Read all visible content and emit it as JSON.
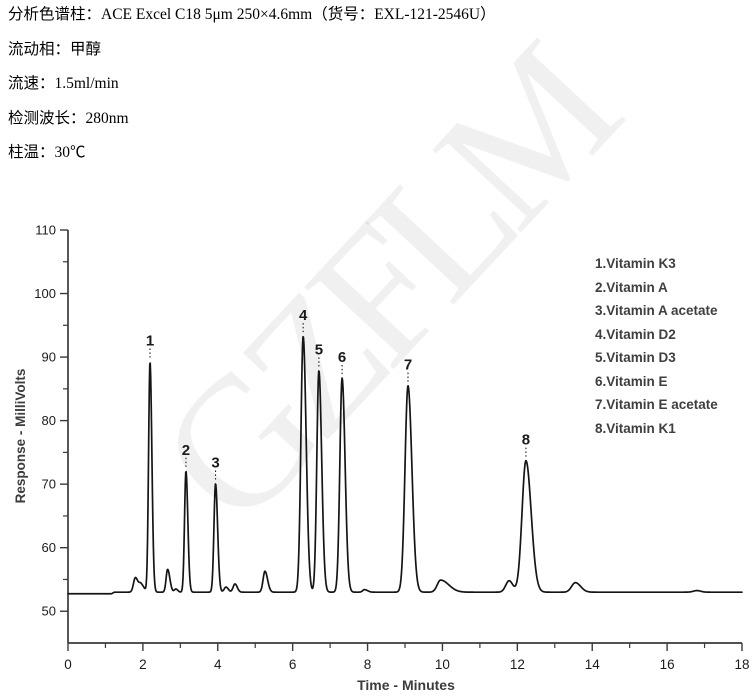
{
  "document": {
    "watermark": "GZFLM",
    "conditions": [
      "分析色谱柱：ACE Excel C18 5μm 250×4.6mm（货号：EXL-121-2546U）",
      "流动相：甲醇",
      "流速：1.5ml/min",
      "检测波长：280nm",
      "柱温：30℃"
    ]
  },
  "chart_data": {
    "type": "line",
    "title": "",
    "xlabel": "Time - Minutes",
    "ylabel": "Response - MilliVolts",
    "xlim": [
      0,
      18
    ],
    "ylim": [
      45,
      110
    ],
    "x_ticks": [
      0,
      2,
      4,
      6,
      8,
      10,
      12,
      14,
      16,
      18
    ],
    "x_minor_step": 1,
    "y_ticks": [
      50,
      60,
      70,
      80,
      90,
      100,
      110
    ],
    "y_minor_step": 5,
    "grid": false,
    "legend_position": "upper right",
    "baseline": {
      "start_mv": 52.75,
      "end_mv": 53.0,
      "step_time_min": 1.15
    },
    "peaks": [
      {
        "label": "1",
        "name": "Vitamin K3",
        "time_min": 2.19,
        "apex_mv": 89.3,
        "sigma_left_min": 0.038,
        "sigma_right_min": 0.05
      },
      {
        "label": "2",
        "name": "Vitamin A",
        "time_min": 3.15,
        "apex_mv": 72.1,
        "sigma_left_min": 0.038,
        "sigma_right_min": 0.05
      },
      {
        "label": "3",
        "name": "Vitamin A acetate",
        "time_min": 3.94,
        "apex_mv": 70.1,
        "sigma_left_min": 0.042,
        "sigma_right_min": 0.055
      },
      {
        "label": "4",
        "name": "Vitamin D2",
        "time_min": 6.28,
        "apex_mv": 93.3,
        "sigma_left_min": 0.06,
        "sigma_right_min": 0.08
      },
      {
        "label": "5",
        "name": "Vitamin D3",
        "time_min": 6.7,
        "apex_mv": 87.9,
        "sigma_left_min": 0.055,
        "sigma_right_min": 0.075
      },
      {
        "label": "6",
        "name": "Vitamin E",
        "time_min": 7.32,
        "apex_mv": 86.7,
        "sigma_left_min": 0.06,
        "sigma_right_min": 0.08
      },
      {
        "label": "7",
        "name": "Vitamin E acetate",
        "time_min": 9.08,
        "apex_mv": 85.5,
        "sigma_left_min": 0.08,
        "sigma_right_min": 0.105
      },
      {
        "label": "8",
        "name": "Vitamin K1",
        "time_min": 12.23,
        "apex_mv": 73.7,
        "sigma_left_min": 0.105,
        "sigma_right_min": 0.14
      }
    ],
    "minor_features": [
      {
        "time_min": 1.8,
        "height_mv": 2.3,
        "sigma_left_min": 0.05,
        "sigma_right_min": 0.07
      },
      {
        "time_min": 1.95,
        "height_mv": 1.2,
        "sigma_left_min": 0.05,
        "sigma_right_min": 0.08
      },
      {
        "time_min": 2.66,
        "height_mv": 3.6,
        "sigma_left_min": 0.04,
        "sigma_right_min": 0.06
      },
      {
        "time_min": 2.88,
        "height_mv": 0.5,
        "sigma_left_min": 0.04,
        "sigma_right_min": 0.05
      },
      {
        "time_min": 4.22,
        "height_mv": 0.8,
        "sigma_left_min": 0.05,
        "sigma_right_min": 0.06
      },
      {
        "time_min": 4.46,
        "height_mv": 1.3,
        "sigma_left_min": 0.05,
        "sigma_right_min": 0.06
      },
      {
        "time_min": 5.26,
        "height_mv": 3.3,
        "sigma_left_min": 0.05,
        "sigma_right_min": 0.07
      },
      {
        "time_min": 7.92,
        "height_mv": 0.4,
        "sigma_left_min": 0.05,
        "sigma_right_min": 0.08
      },
      {
        "time_min": 9.95,
        "height_mv": 1.9,
        "sigma_left_min": 0.09,
        "sigma_right_min": 0.22
      },
      {
        "time_min": 11.78,
        "height_mv": 1.8,
        "sigma_left_min": 0.09,
        "sigma_right_min": 0.1
      },
      {
        "time_min": 13.55,
        "height_mv": 1.5,
        "sigma_left_min": 0.1,
        "sigma_right_min": 0.14
      },
      {
        "time_min": 16.8,
        "height_mv": 0.25,
        "sigma_left_min": 0.1,
        "sigma_right_min": 0.1
      }
    ],
    "legend_items": [
      "1.Vitamin K3",
      "2.Vitamin A",
      "3.Vitamin A acetate",
      "4.Vitamin D2",
      "5.Vitamin D3",
      "6.Vitamin E",
      "7.Vitamin E acetate",
      "8.Vitamin K1"
    ]
  },
  "colors": {
    "trace": "#151515",
    "axis": "#3a3a3a",
    "tick_label": "#1c1c1c",
    "axis_title": "#3c3c3c",
    "peak_label": "#1a1a1a",
    "legend_text": "#3f3f3f"
  }
}
